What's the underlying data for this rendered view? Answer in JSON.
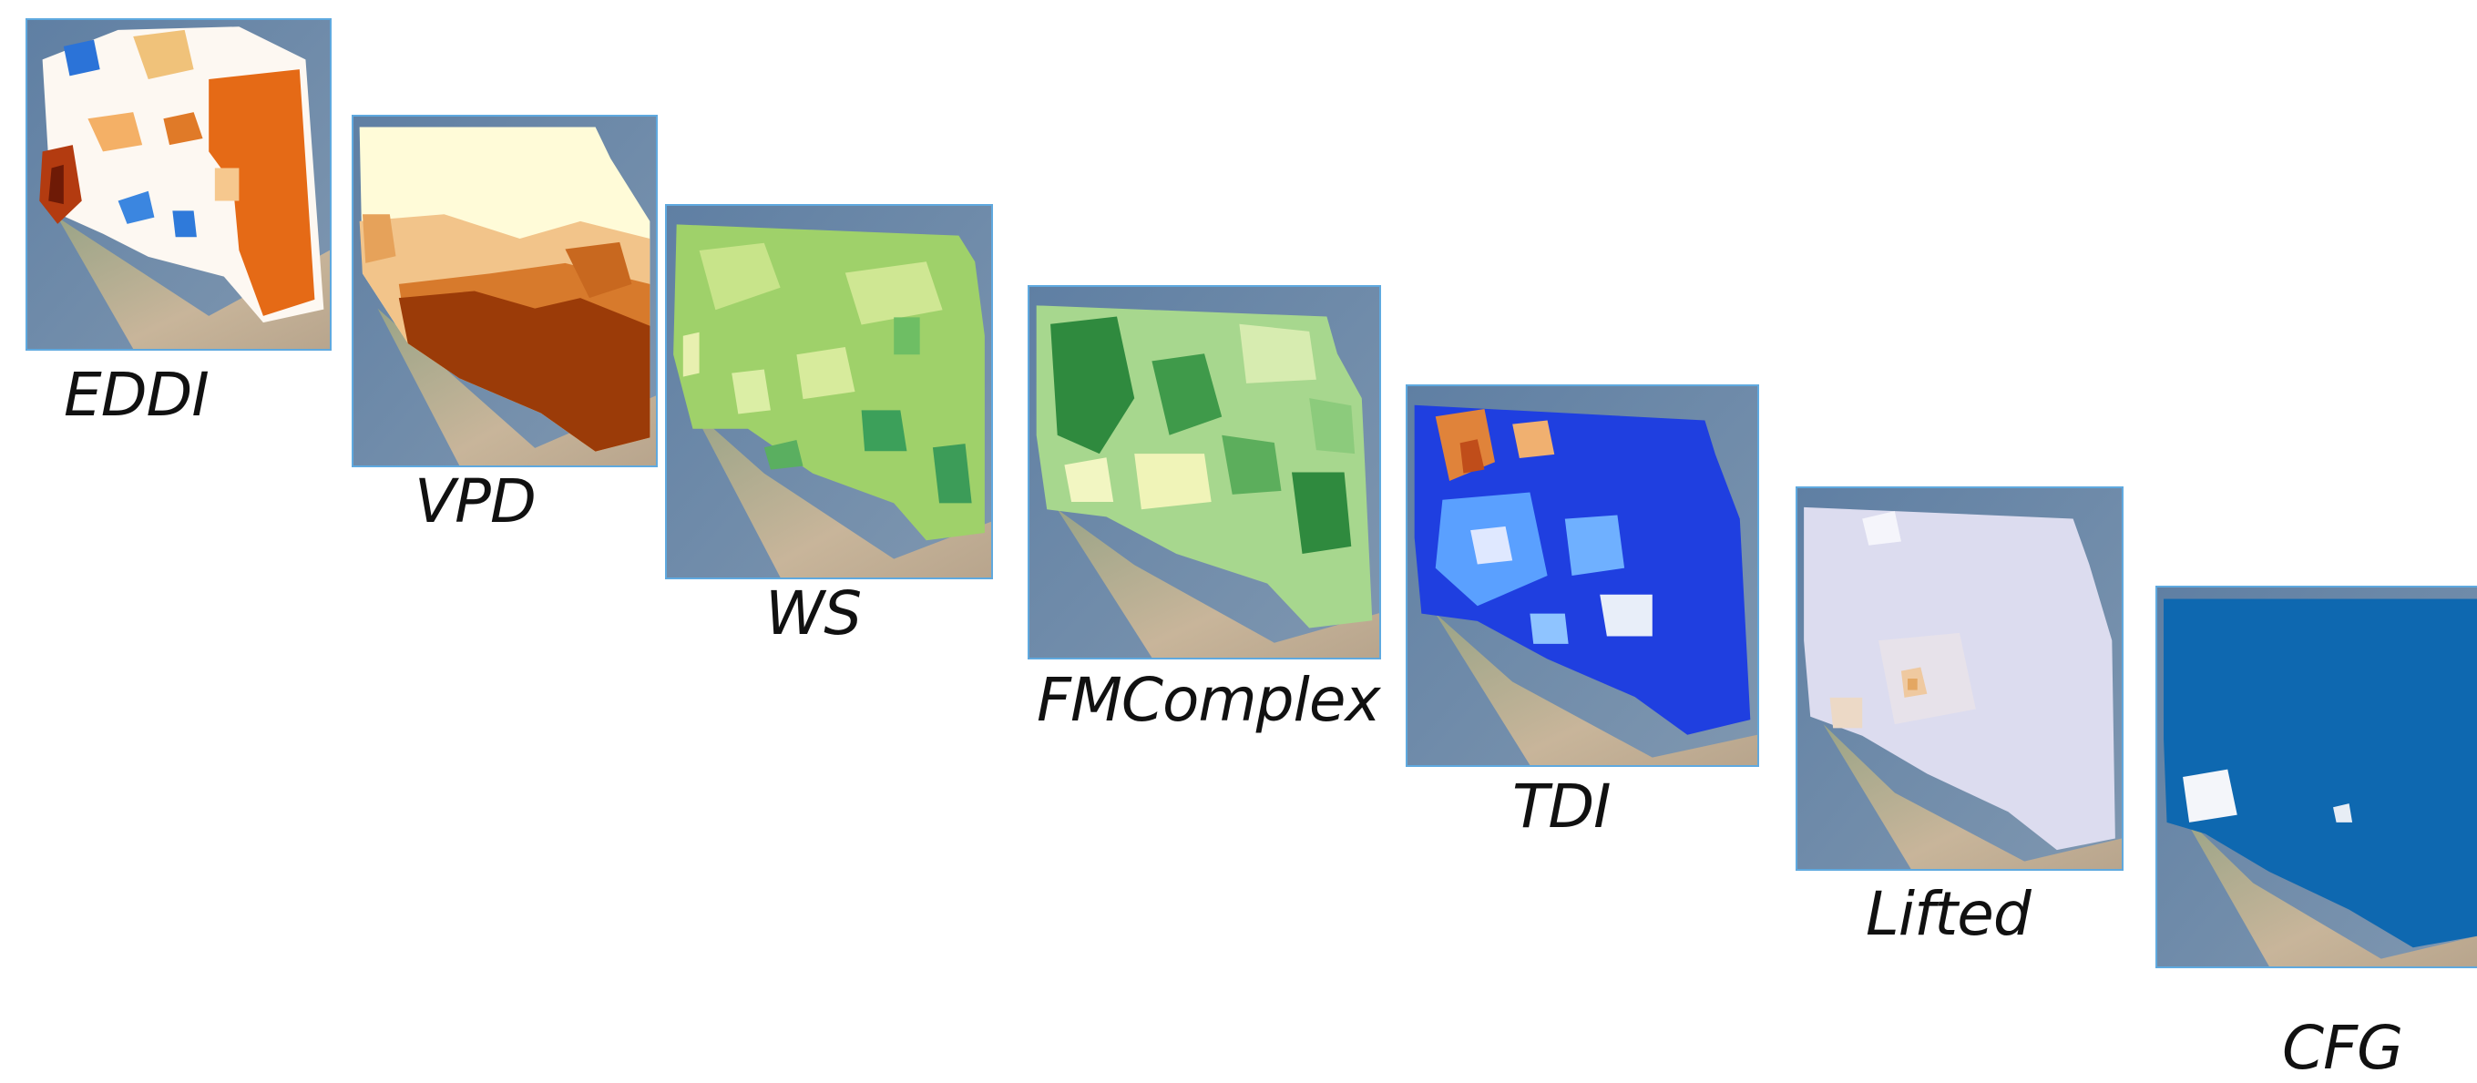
{
  "panels": [
    {
      "id": "eddi",
      "label": "EDDI"
    },
    {
      "id": "vpd",
      "label": "VPD"
    },
    {
      "id": "ws",
      "label": "WS"
    },
    {
      "id": "fmcomplex",
      "label": "FMComplex"
    },
    {
      "id": "tdi",
      "label": "TDI"
    },
    {
      "id": "lifted",
      "label": "Lifted"
    },
    {
      "id": "cfg",
      "label": "CFG"
    }
  ],
  "colors": {
    "frame_border": "#5fa9df",
    "terrain_land": "#b9aa94",
    "ocean": "#6d86a3"
  }
}
